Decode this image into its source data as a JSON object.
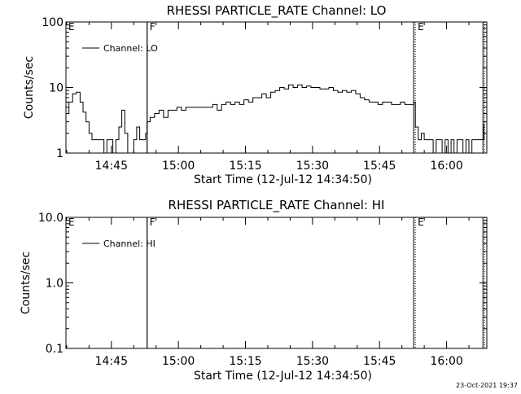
{
  "footer_timestamp": "23-Oct-2021 19:37",
  "chart_data": [
    {
      "type": "line",
      "title": "RHESSI PARTICLE_RATE Channel: LO",
      "xlabel": "Start Time (12-Jul-12 14:34:50)",
      "ylabel": "Counts/sec",
      "yscale": "log",
      "xlim": [
        "14:34:50",
        "16:09:00"
      ],
      "ylim": [
        1,
        100
      ],
      "x_ticks": [
        "14:45",
        "15:00",
        "15:15",
        "15:30",
        "15:45",
        "16:00"
      ],
      "y_ticks": [
        "1",
        "10",
        "100"
      ],
      "legend": {
        "position": "top-left",
        "entries": [
          "Channel: LO"
        ]
      },
      "markers": [
        {
          "time": "14:34:50",
          "label": "E",
          "style": "none"
        },
        {
          "time": "14:53:00",
          "label": "F",
          "style": "solid"
        },
        {
          "time": "15:53:00",
          "label": "E",
          "style": "dotted"
        },
        {
          "time": "16:08:30",
          "label": "",
          "style": "dotted"
        }
      ],
      "series": [
        {
          "name": "Channel: LO",
          "x": [
            "14:34:50",
            "14:35:30",
            "14:36:20",
            "14:37:10",
            "14:38:00",
            "14:38:40",
            "14:39:20",
            "14:40:00",
            "14:40:40",
            "14:41:20",
            "14:42:00",
            "14:42:40",
            "14:43:20",
            "14:44:00",
            "14:44:40",
            "14:45:20",
            "14:46:00",
            "14:46:40",
            "14:47:20",
            "14:48:00",
            "14:48:40",
            "14:49:20",
            "14:50:00",
            "14:50:40",
            "14:51:20",
            "14:52:00",
            "14:52:40",
            "14:53:00",
            "14:53:40",
            "14:54:40",
            "14:55:40",
            "14:56:40",
            "14:57:40",
            "14:58:40",
            "14:59:40",
            "15:00:40",
            "15:01:40",
            "15:02:40",
            "15:03:40",
            "15:04:40",
            "15:05:40",
            "15:06:40",
            "15:07:40",
            "15:08:40",
            "15:09:40",
            "15:10:40",
            "15:11:40",
            "15:12:40",
            "15:13:40",
            "15:14:40",
            "15:15:40",
            "15:16:40",
            "15:17:40",
            "15:18:40",
            "15:19:40",
            "15:20:40",
            "15:21:40",
            "15:22:40",
            "15:23:40",
            "15:24:40",
            "15:25:40",
            "15:26:40",
            "15:27:40",
            "15:28:40",
            "15:29:40",
            "15:30:40",
            "15:31:40",
            "15:32:40",
            "15:33:40",
            "15:34:40",
            "15:35:40",
            "15:36:40",
            "15:37:40",
            "15:38:40",
            "15:39:40",
            "15:40:40",
            "15:41:40",
            "15:42:40",
            "15:43:40",
            "15:44:40",
            "15:45:40",
            "15:46:40",
            "15:47:40",
            "15:48:40",
            "15:49:40",
            "15:50:40",
            "15:51:40",
            "15:52:40",
            "15:53:00",
            "15:53:40",
            "15:54:20",
            "15:55:00",
            "15:55:40",
            "15:56:20",
            "15:57:00",
            "15:57:40",
            "15:58:20",
            "15:59:00",
            "15:59:40",
            "16:00:20",
            "16:01:00",
            "16:01:40",
            "16:02:20",
            "16:03:00",
            "16:03:40",
            "16:04:20",
            "16:05:00",
            "16:05:40",
            "16:06:20",
            "16:07:00",
            "16:07:40",
            "16:08:20"
          ],
          "values": [
            4,
            6,
            8,
            8.5,
            6,
            4.2,
            3,
            2,
            1.6,
            1.6,
            1.6,
            1.6,
            1,
            1.6,
            1.6,
            1,
            1.6,
            2.5,
            4.5,
            2,
            1,
            0.8,
            1.6,
            2.5,
            1.6,
            1.6,
            2,
            3,
            3.5,
            4,
            4.5,
            3.5,
            4.5,
            4.5,
            5,
            4.5,
            5,
            5,
            5,
            5,
            5,
            5,
            5.5,
            4.5,
            5.5,
            6,
            5.5,
            6,
            5.5,
            6.5,
            6,
            7,
            7,
            8,
            7,
            8.5,
            9,
            10,
            9.5,
            11,
            10,
            11,
            10,
            10.5,
            10,
            10,
            9.5,
            9.5,
            10,
            9,
            8.5,
            9,
            8.5,
            9,
            8,
            7,
            6.5,
            6,
            6,
            5.5,
            6,
            6,
            5.5,
            5.5,
            6,
            5.5,
            5.5,
            6,
            2.5,
            1.6,
            2,
            1.6,
            1.6,
            1.6,
            1,
            1.6,
            1.6,
            1,
            1.6,
            1,
            1.6,
            1,
            1.6,
            1.6,
            1,
            1.6,
            1,
            1.6,
            1.6,
            1.6,
            1.6,
            2.8
          ]
        }
      ]
    },
    {
      "type": "line",
      "title": "RHESSI PARTICLE_RATE Channel: HI",
      "xlabel": "Start Time (12-Jul-12 14:34:50)",
      "ylabel": "Counts/sec",
      "yscale": "log",
      "xlim": [
        "14:34:50",
        "16:09:00"
      ],
      "ylim": [
        0.1,
        10
      ],
      "x_ticks": [
        "14:45",
        "15:00",
        "15:15",
        "15:30",
        "15:45",
        "16:00"
      ],
      "y_ticks": [
        "0.1",
        "1.0",
        "10.0"
      ],
      "legend": {
        "position": "top-left",
        "entries": [
          "Channel: HI"
        ]
      },
      "markers": [
        {
          "time": "14:34:50",
          "label": "E",
          "style": "none"
        },
        {
          "time": "14:53:00",
          "label": "F",
          "style": "solid"
        },
        {
          "time": "15:53:00",
          "label": "E",
          "style": "dotted"
        },
        {
          "time": "16:08:30",
          "label": "",
          "style": "dotted"
        }
      ],
      "series": [
        {
          "name": "Channel: HI",
          "x": [],
          "values": []
        }
      ]
    }
  ]
}
